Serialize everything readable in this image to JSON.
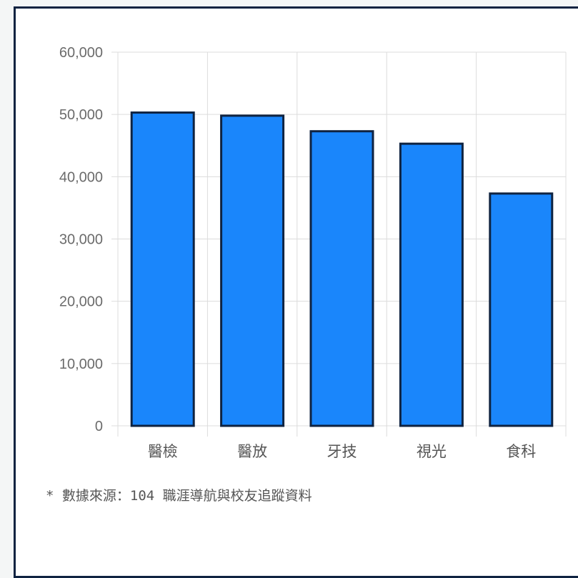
{
  "chart_data": {
    "type": "bar",
    "categories": [
      "醫檢",
      "醫放",
      "牙技",
      "視光",
      "食科"
    ],
    "values": [
      50300,
      49800,
      47300,
      45300,
      37300
    ],
    "ylim": [
      0,
      60000
    ],
    "yticks": [
      0,
      10000,
      20000,
      30000,
      40000,
      50000,
      60000
    ],
    "ytick_labels": [
      "0",
      "10,000",
      "20,000",
      "30,000",
      "40,000",
      "50,000",
      "60,000"
    ],
    "grid": true,
    "legend": "none",
    "colors": {
      "bar_fill": "#1a86fb",
      "bar_stroke": "#0f2341",
      "grid": "#dcdcdc",
      "frame": "#0f2341"
    }
  },
  "footnote": "* 數據來源：104 職涯導航與校友追蹤資料"
}
